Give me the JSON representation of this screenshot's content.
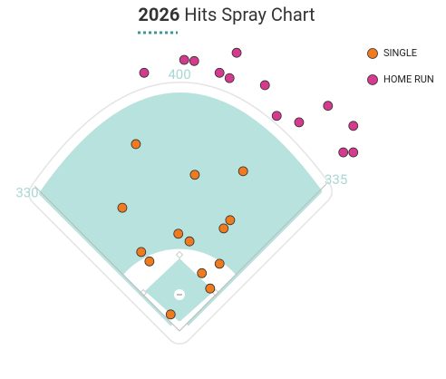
{
  "chart_data": {
    "type": "scatter",
    "title": {
      "bold": "2026",
      "text": "Hits Spray Chart"
    },
    "fence_distances": [
      330,
      400,
      335
    ],
    "series": [
      {
        "name": "SINGLE",
        "color": "#f07a1e",
        "x": [
          -74,
          26,
          108,
          -97,
          86,
          75,
          -2,
          17,
          -65,
          -51,
          68,
          38,
          52,
          -15
        ],
        "values": [
          317,
          265,
          271,
          209,
          188,
          174,
          165,
          152,
          134,
          118,
          114,
          98,
          72,
          28
        ]
      },
      {
        "name": "HOME RUN",
        "color": "#d63a8e",
        "x": [
          -60,
          8,
          25,
          97,
          68,
          85,
          145,
          165,
          203,
          252,
          295,
          278,
          295
        ],
        "values": [
          438,
          460,
          458,
          472,
          438,
          429,
          417,
          365,
          354,
          382,
          348,
          303,
          303
        ]
      }
    ]
  }
}
